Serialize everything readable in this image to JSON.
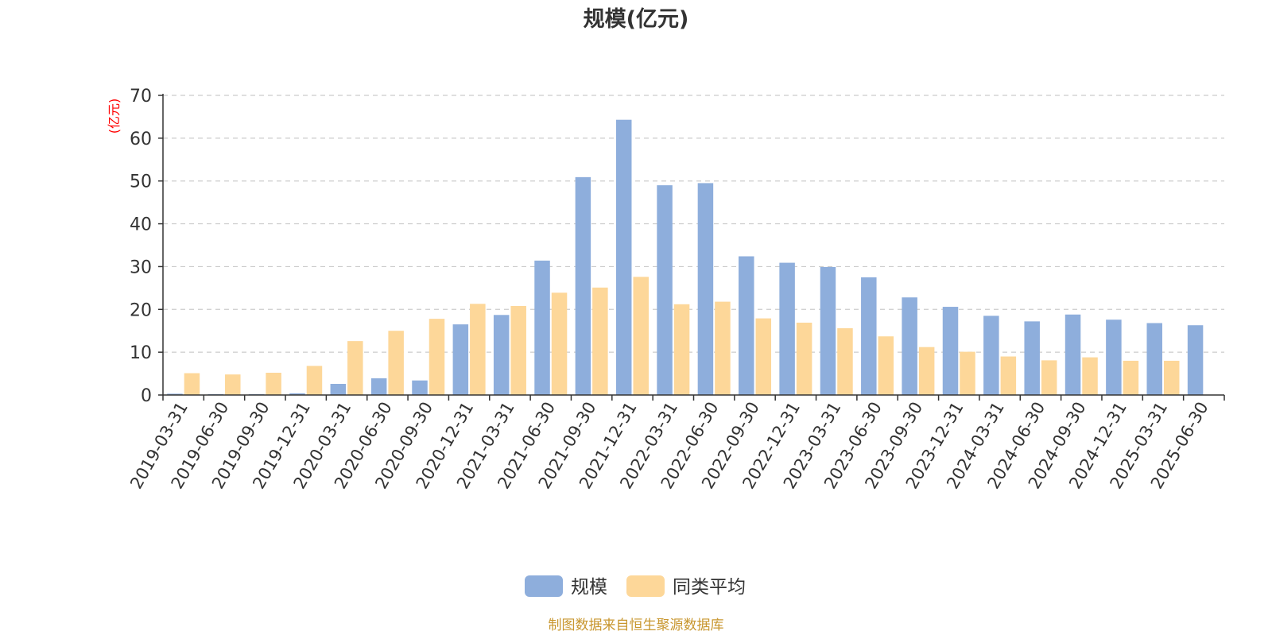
{
  "chart_data": {
    "type": "bar",
    "title": "规模(亿元)",
    "ylabel": "(亿元)",
    "xlabel": "",
    "ylim": [
      0,
      70
    ],
    "yticks": [
      0,
      10,
      20,
      30,
      40,
      50,
      60,
      70
    ],
    "grid": true,
    "legend_position": "bottom-center",
    "categories": [
      "2019-03-31",
      "2019-06-30",
      "2019-09-30",
      "2019-12-31",
      "2020-03-31",
      "2020-06-30",
      "2020-09-30",
      "2020-12-31",
      "2021-03-31",
      "2021-06-30",
      "2021-09-30",
      "2021-12-31",
      "2022-03-31",
      "2022-06-30",
      "2022-09-30",
      "2022-12-31",
      "2023-03-31",
      "2023-06-30",
      "2023-09-30",
      "2023-12-31",
      "2024-03-31",
      "2024-06-30",
      "2024-09-30",
      "2024-12-31",
      "2025-03-31",
      "2025-06-30"
    ],
    "series": [
      {
        "name": "规模",
        "color": "#8eaedc",
        "values": [
          0.3,
          0.2,
          0.2,
          0.4,
          2.6,
          3.9,
          3.4,
          16.5,
          18.7,
          31.4,
          50.9,
          64.3,
          49.0,
          49.5,
          32.4,
          30.9,
          29.9,
          27.5,
          22.8,
          20.6,
          18.5,
          17.2,
          18.8,
          17.6,
          16.8,
          16.3
        ]
      },
      {
        "name": "同类平均",
        "color": "#fdd799",
        "values": [
          5.1,
          4.8,
          5.2,
          6.8,
          12.6,
          15.0,
          17.8,
          21.3,
          20.8,
          23.9,
          25.1,
          27.6,
          21.2,
          21.8,
          17.9,
          16.9,
          15.6,
          13.7,
          11.2,
          10.1,
          9.0,
          8.1,
          8.8,
          8.0,
          8.0,
          null
        ]
      }
    ],
    "source_note": "制图数据来自恒生聚源数据库"
  }
}
